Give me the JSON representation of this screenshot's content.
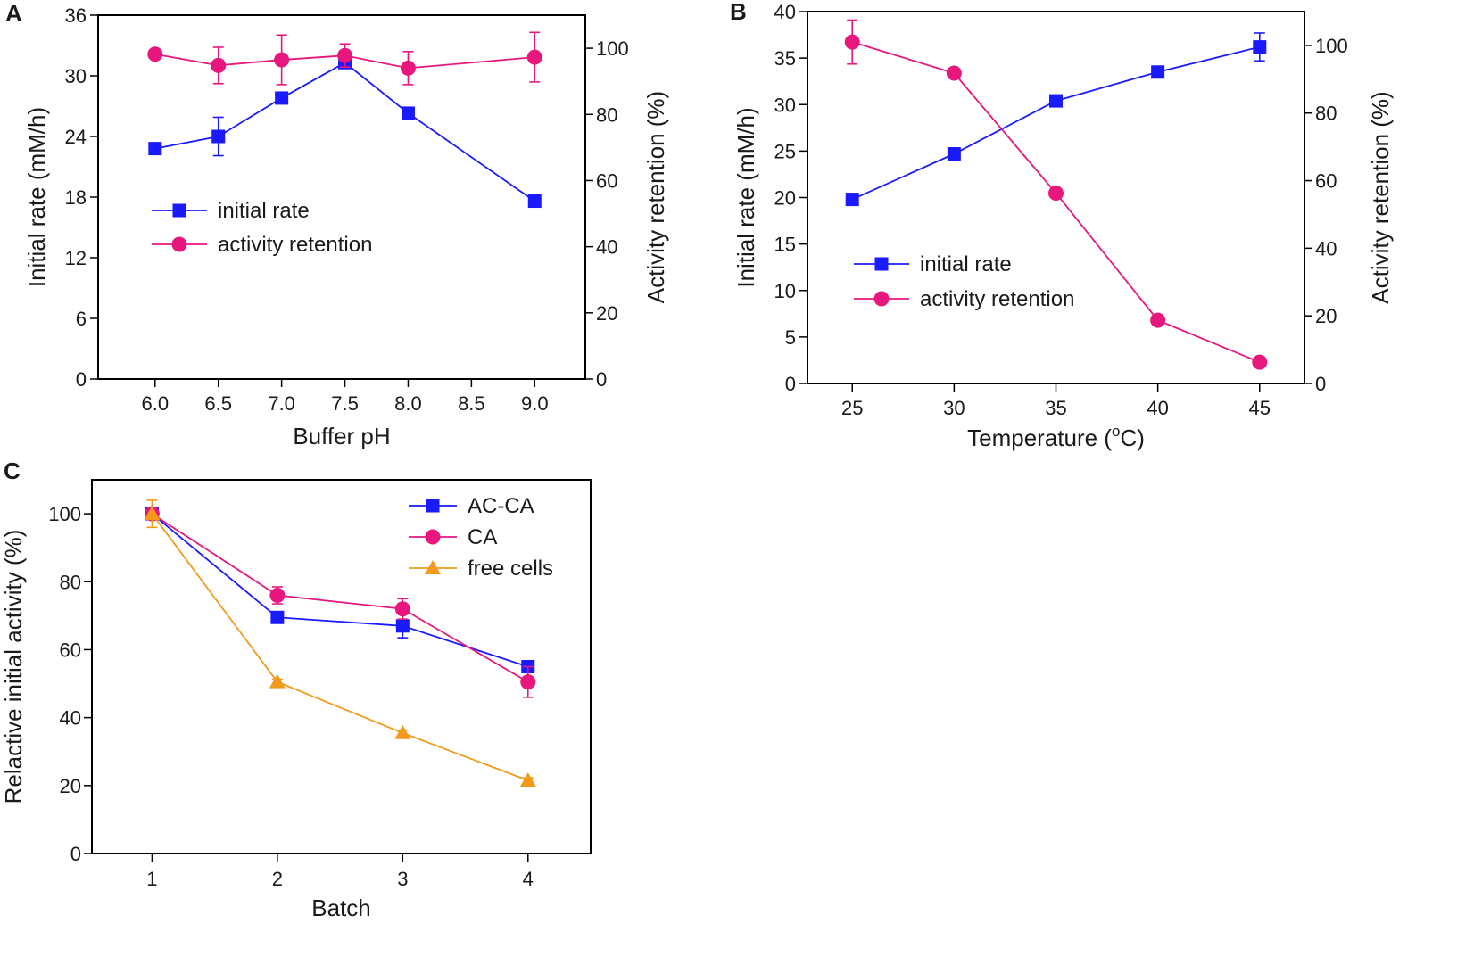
{
  "chart_data": [
    {
      "panel": "A",
      "type": "line",
      "xlabel": "Buffer pH",
      "ylabel": "Initial rate (mM/h)",
      "y2label": "Activity retention (%)",
      "xlim": [
        5.55,
        9.4
      ],
      "ylim": [
        0,
        36
      ],
      "y2lim": [
        0,
        110
      ],
      "xticks": [
        6.0,
        6.5,
        7.0,
        7.5,
        8.0,
        8.5,
        9.0
      ],
      "xtick_labels": [
        "6.0",
        "6.5",
        "7.0",
        "7.5",
        "8.0",
        "8.5",
        "9.0"
      ],
      "yticks": [
        0,
        6,
        12,
        18,
        24,
        30,
        36
      ],
      "ytick_labels": [
        "0",
        "6",
        "12",
        "18",
        "24",
        "30",
        "36"
      ],
      "y2ticks": [
        0,
        20,
        40,
        60,
        80,
        100
      ],
      "y2tick_labels": [
        "0",
        "20",
        "40",
        "60",
        "80",
        "100"
      ],
      "legend_position": "center-left",
      "series": [
        {
          "name": "initial rate",
          "marker": "square",
          "color": "#1a1aff",
          "axis": "left",
          "x": [
            6.0,
            6.5,
            7.0,
            7.5,
            8.0,
            9.0
          ],
          "values": [
            22.8,
            24.0,
            27.8,
            31.3,
            26.3,
            17.6
          ],
          "errors": [
            0.3,
            1.9,
            0.3,
            0.3,
            0.3,
            0.3
          ]
        },
        {
          "name": "activity retention",
          "marker": "circle",
          "color": "#e8177d",
          "axis": "right",
          "x": [
            6.0,
            6.5,
            7.0,
            7.5,
            8.0,
            9.0
          ],
          "values": [
            98.2,
            94.8,
            96.5,
            97.8,
            94.0,
            97.3
          ],
          "errors": [
            0.8,
            5.5,
            7.5,
            3.5,
            5.0,
            7.5
          ]
        }
      ]
    },
    {
      "panel": "B",
      "type": "line",
      "xlabel": "Temperature (°C)",
      "xlabel_main": "Temperature (",
      "xlabel_sup": "o",
      "xlabel_end": "C)",
      "ylabel": "Initial rate (mM/h)",
      "y2label": "Activity retention (%)",
      "xlim": [
        22.8,
        47.2
      ],
      "ylim": [
        0,
        40
      ],
      "y2lim": [
        0,
        110
      ],
      "xticks": [
        25,
        30,
        35,
        40,
        45
      ],
      "xtick_labels": [
        "25",
        "30",
        "35",
        "40",
        "45"
      ],
      "yticks": [
        0,
        5,
        10,
        15,
        20,
        25,
        30,
        35,
        40
      ],
      "ytick_labels": [
        "0",
        "5",
        "10",
        "15",
        "20",
        "25",
        "30",
        "35",
        "40"
      ],
      "y2ticks": [
        0,
        20,
        40,
        60,
        80,
        100
      ],
      "y2tick_labels": [
        "0",
        "20",
        "40",
        "60",
        "80",
        "100"
      ],
      "legend_position": "bottom-left",
      "series": [
        {
          "name": "initial rate",
          "marker": "square",
          "color": "#1a1aff",
          "axis": "left",
          "x": [
            25,
            30,
            35,
            40,
            45
          ],
          "values": [
            19.8,
            24.7,
            30.4,
            33.5,
            36.2
          ],
          "errors": [
            0.3,
            0.3,
            0.3,
            0.5,
            1.5
          ]
        },
        {
          "name": "activity retention",
          "marker": "circle",
          "color": "#e8177d",
          "axis": "right",
          "x": [
            25,
            30,
            35,
            40,
            45
          ],
          "values": [
            101.0,
            91.8,
            56.3,
            18.7,
            6.3
          ],
          "errors": [
            6.5,
            0.5,
            0.5,
            0.5,
            0.5
          ]
        }
      ]
    },
    {
      "panel": "C",
      "type": "line",
      "xlabel": "Batch",
      "ylabel": "Relactive initial activity (%)",
      "xlim": [
        0.52,
        4.5
      ],
      "ylim": [
        0,
        110
      ],
      "xticks": [
        1,
        2,
        3,
        4
      ],
      "xtick_labels": [
        "1",
        "2",
        "3",
        "4"
      ],
      "yticks": [
        0,
        20,
        40,
        60,
        80,
        100
      ],
      "ytick_labels": [
        "0",
        "20",
        "40",
        "60",
        "80",
        "100"
      ],
      "legend_position": "top-right",
      "series": [
        {
          "name": "AC-CA",
          "marker": "square",
          "color": "#1a1aff",
          "x": [
            1,
            2,
            3,
            4
          ],
          "values": [
            100.0,
            69.5,
            67.0,
            55.0
          ],
          "errors": [
            0.5,
            1.2,
            3.5,
            0.8
          ]
        },
        {
          "name": "CA",
          "marker": "circle",
          "color": "#e8177d",
          "x": [
            1,
            2,
            3,
            4
          ],
          "values": [
            100.0,
            76.0,
            72.0,
            50.5
          ],
          "errors": [
            0.8,
            2.5,
            3.0,
            4.5
          ]
        },
        {
          "name": "free cells",
          "marker": "triangle",
          "color": "#f39a1d",
          "x": [
            1,
            2,
            3,
            4
          ],
          "values": [
            100.0,
            50.5,
            35.5,
            21.5
          ],
          "errors": [
            4.0,
            0.8,
            0.8,
            0.8
          ]
        }
      ]
    }
  ]
}
